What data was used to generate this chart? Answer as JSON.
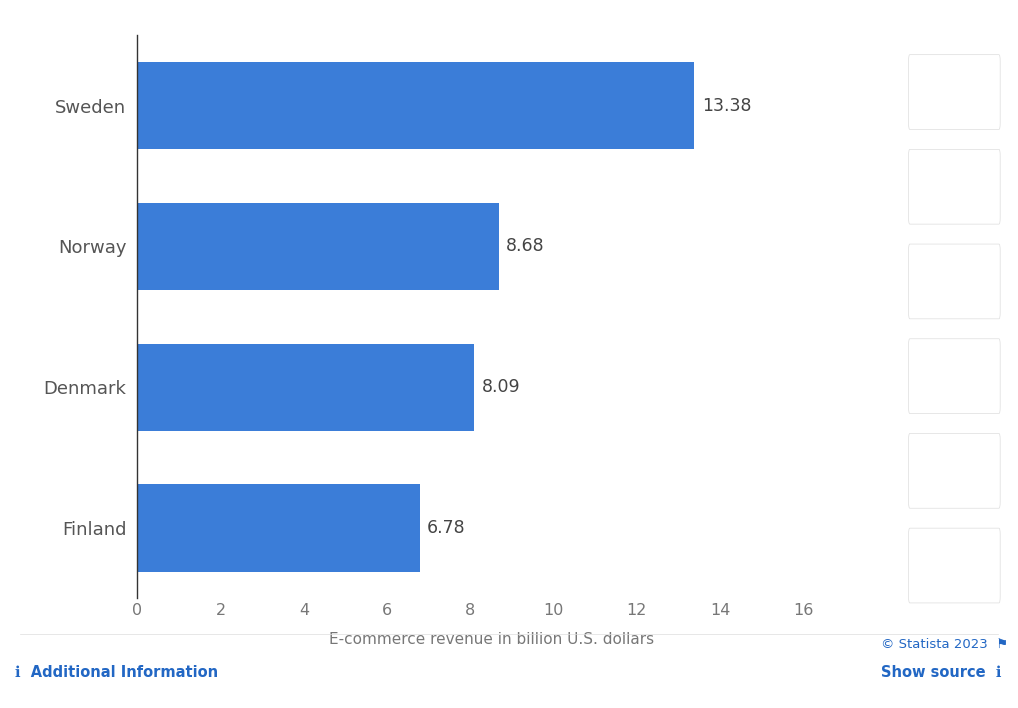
{
  "categories": [
    "Finland",
    "Denmark",
    "Norway",
    "Sweden"
  ],
  "values": [
    6.78,
    8.09,
    8.68,
    13.38
  ],
  "bar_color": "#3b7dd8",
  "background_color": "#ffffff",
  "plot_bg_color": "#f0f0f0",
  "row_bg_colors": [
    "#ffffff",
    "#e8e8e8"
  ],
  "xlabel": "E-commerce revenue in billion U.S. dollars",
  "xlim": [
    0,
    17
  ],
  "xticks": [
    0,
    2,
    4,
    6,
    8,
    10,
    12,
    14,
    16
  ],
  "bar_height": 0.62,
  "label_fontsize": 13,
  "tick_fontsize": 11.5,
  "xlabel_fontsize": 11,
  "value_label_fontsize": 12.5,
  "value_label_color": "#444444",
  "ytick_color": "#555555",
  "xtick_color": "#777777",
  "grid_color": "#b0b0b0",
  "spine_color": "#333333",
  "footer_text_color": "#2267c4",
  "statista_text": "© Statista 2023",
  "additional_info_text": "Additional Information",
  "show_source_text": "Show source",
  "icon_panel_color": "#f4f4f4",
  "icon_button_color": "#ffffff",
  "icon_color": "#3d4f6b"
}
